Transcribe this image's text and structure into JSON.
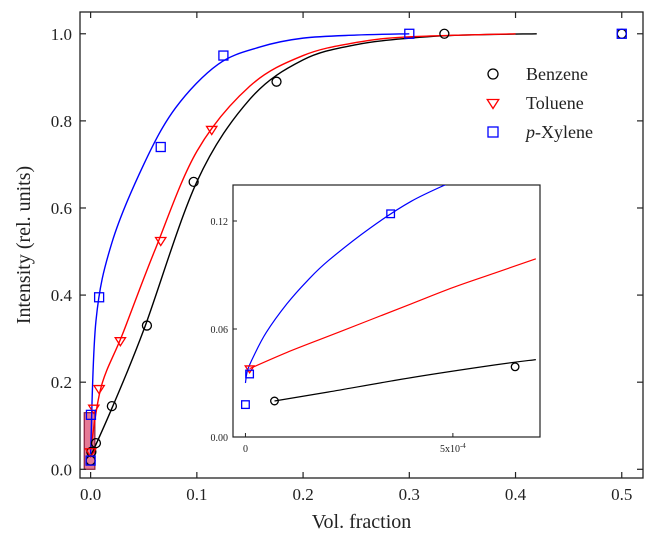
{
  "chart_data": [
    {
      "type": "scatter",
      "xlabel": "Vol. fraction",
      "ylabel": "Intensity (rel. units)",
      "xlim": [
        -0.01,
        0.52
      ],
      "ylim": [
        -0.02,
        1.05
      ],
      "xticks": [
        0.0,
        0.1,
        0.2,
        0.3,
        0.4,
        0.5
      ],
      "xtick_labels": [
        "0.0",
        "0.1",
        "0.2",
        "0.3",
        "0.4",
        "0.5"
      ],
      "yticks": [
        0.0,
        0.2,
        0.4,
        0.6,
        0.8,
        1.0
      ],
      "ytick_labels": [
        "0.0",
        "0.2",
        "0.4",
        "0.6",
        "0.8",
        "1.0"
      ],
      "legend_position": "top-right",
      "grid": false,
      "highlight_box": {
        "x_range": [
          -0.006,
          0.004
        ],
        "y_range": [
          0.0,
          0.13
        ],
        "color": "#e0587a"
      },
      "series": [
        {
          "name": "Benzene",
          "marker": "circle",
          "color": "#000000",
          "x": [
            0.0,
            0.0007,
            0.005,
            0.02,
            0.053,
            0.097,
            0.175,
            0.333,
            0.5
          ],
          "y": [
            0.02,
            0.04,
            0.06,
            0.145,
            0.33,
            0.66,
            0.89,
            1.0,
            1.0
          ]
        },
        {
          "name": "Toluene",
          "marker": "triangle-down",
          "color": "#ff0000",
          "x": [
            7e-05,
            0.003,
            0.008,
            0.028,
            0.066,
            0.114
          ],
          "y": [
            0.04,
            0.14,
            0.185,
            0.295,
            0.525,
            0.78
          ]
        },
        {
          "name": "p-Xylene",
          "name_prefix": "p",
          "name_suffix": "-Xylene",
          "marker": "square",
          "color": "#0000ff",
          "x": [
            0.0,
            0.0003,
            0.008,
            0.066,
            0.125,
            0.3,
            0.5
          ],
          "y": [
            0.02,
            0.125,
            0.395,
            0.74,
            0.95,
            1.0,
            1.0
          ]
        }
      ],
      "fit_curves": [
        {
          "series": "Benzene",
          "color": "#000000",
          "x": [
            0.0,
            0.02,
            0.05,
            0.1,
            0.15,
            0.2,
            0.25,
            0.3,
            0.35,
            0.42
          ],
          "y": [
            0.03,
            0.14,
            0.32,
            0.66,
            0.85,
            0.94,
            0.975,
            0.99,
            0.997,
            1.0
          ]
        },
        {
          "series": "Toluene",
          "color": "#ff0000",
          "x": [
            0.0,
            0.01,
            0.03,
            0.06,
            0.1,
            0.15,
            0.2,
            0.25,
            0.3,
            0.4
          ],
          "y": [
            0.045,
            0.19,
            0.31,
            0.5,
            0.73,
            0.88,
            0.95,
            0.98,
            0.993,
            1.0
          ]
        },
        {
          "series": "p-Xylene",
          "color": "#0000ff",
          "x": [
            0.0,
            0.005,
            0.02,
            0.05,
            0.08,
            0.12,
            0.16,
            0.2,
            0.25,
            0.3
          ],
          "y": [
            0.035,
            0.34,
            0.52,
            0.7,
            0.83,
            0.93,
            0.97,
            0.99,
            0.997,
            1.0
          ]
        }
      ]
    },
    {
      "type": "scatter",
      "inset": true,
      "xlim": [
        -3e-05,
        0.00071
      ],
      "ylim": [
        0.0,
        0.14
      ],
      "xticks": [
        0.0,
        0.0005
      ],
      "xtick_labels": [
        "0",
        "5x10"
      ],
      "xtick_superscript": "-4",
      "yticks": [
        0.0,
        0.06,
        0.12
      ],
      "ytick_labels": [
        "0.00",
        "0.06",
        "0.12"
      ],
      "grid": false,
      "series": [
        {
          "name": "Benzene",
          "marker": "circle",
          "color": "#000000",
          "x": [
            7e-05,
            0.00065
          ],
          "y": [
            0.02,
            0.039
          ]
        },
        {
          "name": "Toluene",
          "marker": "triangle-down",
          "color": "#ff0000",
          "x": [
            1e-05
          ],
          "y": [
            0.038
          ]
        },
        {
          "name": "p-Xylene",
          "marker": "square",
          "color": "#0000ff",
          "x": [
            0.0,
            1e-05,
            0.00035
          ],
          "y": [
            0.018,
            0.035,
            0.124
          ]
        }
      ],
      "fit_curves": [
        {
          "series": "Benzene",
          "color": "#000000",
          "x": [
            7e-05,
            0.0002,
            0.0004,
            0.0006,
            0.0007
          ],
          "y": [
            0.02,
            0.025,
            0.033,
            0.04,
            0.043
          ]
        },
        {
          "series": "Toluene",
          "color": "#ff0000",
          "x": [
            1e-05,
            0.0001,
            0.0002,
            0.0003,
            0.0004,
            0.0005,
            0.0006,
            0.0007
          ],
          "y": [
            0.038,
            0.047,
            0.056,
            0.065,
            0.074,
            0.083,
            0.091,
            0.099
          ]
        },
        {
          "series": "p-Xylene",
          "color": "#0000ff",
          "x": [
            0.0,
            5e-06,
            2e-05,
            5e-05,
            0.0001,
            0.00015,
            0.0002,
            0.0003,
            0.0004,
            0.0005
          ],
          "y": [
            0.03,
            0.037,
            0.045,
            0.058,
            0.074,
            0.087,
            0.098,
            0.116,
            0.131,
            0.142
          ]
        }
      ]
    }
  ]
}
